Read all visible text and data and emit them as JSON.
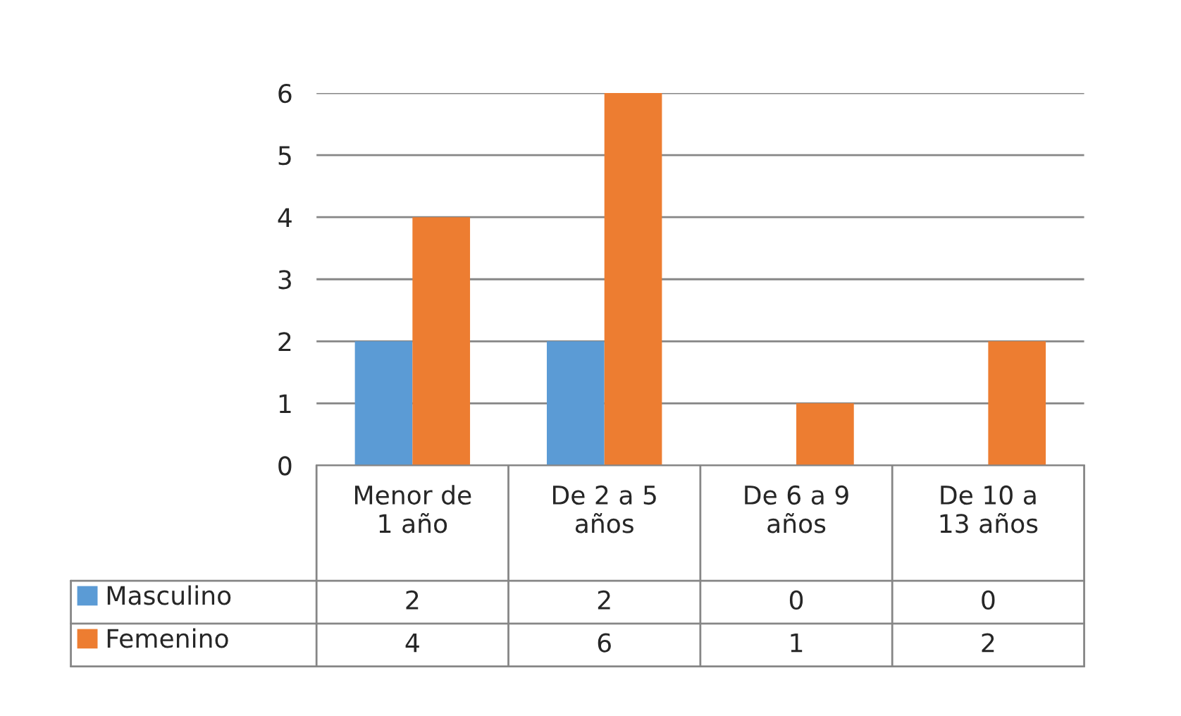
{
  "chart_data": {
    "type": "bar",
    "categories": [
      "Menor de\n1 año",
      "De 2 a 5\naños",
      "De 6 a 9\naños",
      "De 10 a\n13 años"
    ],
    "series": [
      {
        "name": "Masculino",
        "color": "#5b9bd5",
        "values": [
          2,
          2,
          0,
          0
        ]
      },
      {
        "name": "Femenino",
        "color": "#ed7d31",
        "values": [
          4,
          6,
          1,
          2
        ]
      }
    ],
    "ylim": [
      0,
      6
    ],
    "yticks": [
      0,
      1,
      2,
      3,
      4,
      5,
      6
    ],
    "grid": "y",
    "legend": "bottom",
    "data_labels": true
  }
}
